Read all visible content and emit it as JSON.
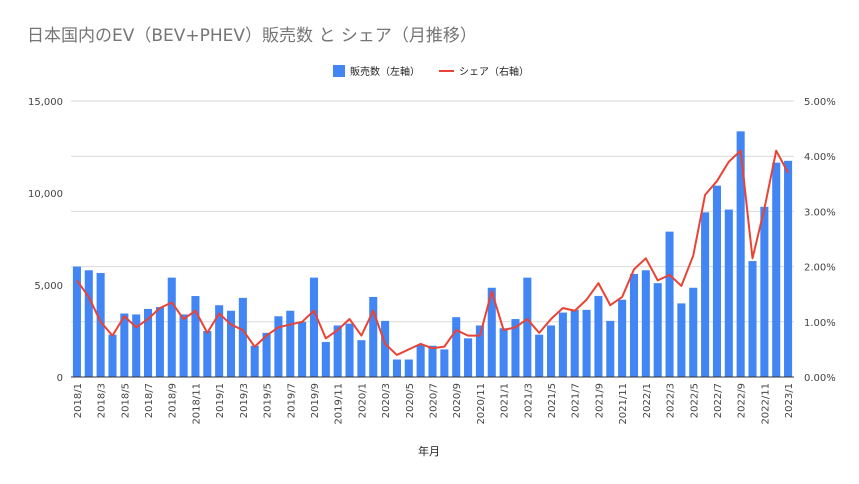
{
  "chart_data": {
    "type": "bar",
    "title": "日本国内のEV（BEV+PHEV）販売数 と シェア（月推移）",
    "xlabel": "年月",
    "ylabel": "",
    "ylim": [
      0,
      15000
    ],
    "y2lim": [
      0,
      5.0
    ],
    "grid": true,
    "legend_position": "top",
    "y_ticks": [
      "0",
      "5,000",
      "10,000",
      "15,000"
    ],
    "y2_ticks": [
      "0.00%",
      "1.00%",
      "2.00%",
      "3.00%",
      "4.00%",
      "5.00%"
    ],
    "categories": [
      "2018/1",
      "2018/2",
      "2018/3",
      "2018/4",
      "2018/5",
      "2018/6",
      "2018/7",
      "2018/8",
      "2018/9",
      "2018/10",
      "2018/11",
      "2018/12",
      "2019/1",
      "2019/2",
      "2019/3",
      "2019/4",
      "2019/5",
      "2019/6",
      "2019/7",
      "2019/8",
      "2019/9",
      "2019/10",
      "2019/11",
      "2019/12",
      "2020/1",
      "2020/2",
      "2020/3",
      "2020/4",
      "2020/5",
      "2020/6",
      "2020/7",
      "2020/8",
      "2020/9",
      "2020/10",
      "2020/11",
      "2020/12",
      "2021/1",
      "2021/2",
      "2021/3",
      "2021/4",
      "2021/5",
      "2021/6",
      "2021/7",
      "2021/8",
      "2021/9",
      "2021/10",
      "2021/11",
      "2021/12",
      "2022/1",
      "2022/2",
      "2022/3",
      "2022/4",
      "2022/5",
      "2022/6",
      "2022/7",
      "2022/8",
      "2022/9",
      "2022/10",
      "2022/11",
      "2022/12",
      "2023/1"
    ],
    "x_tick_labels": [
      "2018/1",
      "2018/3",
      "2018/5",
      "2018/7",
      "2018/9",
      "2018/11",
      "2019/1",
      "2019/3",
      "2019/5",
      "2019/7",
      "2019/9",
      "2019/11",
      "2020/1",
      "2020/3",
      "2020/5",
      "2020/7",
      "2020/9",
      "2020/11",
      "2021/1",
      "2021/3",
      "2021/5",
      "2021/7",
      "2021/9",
      "2021/11",
      "2022/1",
      "2022/3",
      "2022/5",
      "2022/7",
      "2022/9",
      "2022/11",
      "2023/1"
    ],
    "series": [
      {
        "name": "販売数（左軸）",
        "type": "bar",
        "axis": "left",
        "color": "#4285f4",
        "values": [
          6000,
          5800,
          5650,
          2300,
          3450,
          3400,
          3700,
          3800,
          5400,
          3400,
          4400,
          2500,
          3900,
          3600,
          4300,
          1700,
          2400,
          3300,
          3600,
          3000,
          5400,
          1900,
          2800,
          2900,
          2000,
          4350,
          3050,
          950,
          950,
          1750,
          1700,
          1500,
          3250,
          2100,
          2800,
          4850,
          2650,
          3150,
          5400,
          2300,
          2800,
          3500,
          3650,
          3650,
          4400,
          3050,
          4200,
          5600,
          5800,
          5100,
          7900,
          4000,
          4850,
          8950,
          10400,
          9100,
          13350,
          6300,
          9250,
          11650,
          11750
        ]
      },
      {
        "name": "シェア（右軸）",
        "type": "line",
        "axis": "right",
        "color": "#ea4335",
        "values": [
          1.75,
          1.45,
          1.0,
          0.75,
          1.1,
          0.9,
          1.05,
          1.25,
          1.35,
          1.05,
          1.2,
          0.8,
          1.15,
          0.95,
          0.85,
          0.55,
          0.75,
          0.9,
          0.95,
          1.0,
          1.2,
          0.7,
          0.85,
          1.05,
          0.75,
          1.2,
          0.6,
          0.4,
          0.5,
          0.6,
          0.52,
          0.55,
          0.85,
          0.75,
          0.75,
          1.55,
          0.85,
          0.9,
          1.05,
          0.8,
          1.05,
          1.25,
          1.2,
          1.4,
          1.7,
          1.3,
          1.45,
          1.95,
          2.15,
          1.75,
          1.85,
          1.65,
          2.2,
          3.3,
          3.55,
          3.9,
          4.1,
          2.15,
          3.05,
          4.1,
          3.7
        ]
      }
    ]
  }
}
